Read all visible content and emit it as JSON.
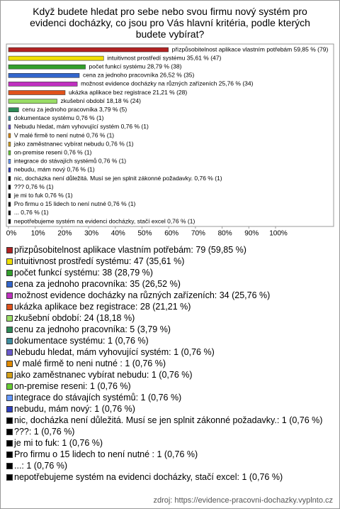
{
  "chart_data": {
    "type": "hbar",
    "title": "Když budete hledat pro sebe nebo svou firmu nový systém pro evidenci docházky, co jsou pro Vás hlavní kritéria, podle kterých budete vybírat?",
    "values": [
      59.85,
      35.61,
      28.79,
      26.52,
      25.76,
      21.21,
      18.18,
      3.79,
      0.76,
      0.76,
      0.76,
      0.76,
      0.76,
      0.76,
      0.76,
      0.76,
      0.76,
      0.76,
      0.76,
      0.76,
      0.76
    ],
    "value_labels": [
      "přizpůsobitelnost aplikace vlastním potřebám 59,85 % (79)",
      "intuitivnost prostředí systému 35,61 % (47)",
      "počet funkcí systému 28,79 % (38)",
      "cena za jednoho pracovníka 26,52 % (35)",
      "možnost evidence docházky na různých zařízeních 25,76 % (34)",
      "ukázka aplikace bez registrace 21,21 % (28)",
      "zkušební období 18,18 % (24)",
      "cenu za jednoho pracovníka 3,79 % (5)",
      "dokumentace systému 0,76 % (1)",
      "Nebudu hledat, mám vyhovující systém 0,76 % (1)",
      "V malé firmě to není nutné 0,76 % (1)",
      "jako zaměstnanec vybírat nebudu 0,76 % (1)",
      "on-premise reseni 0,76 % (1)",
      "integrace do stávajích systémů 0,76 % (1)",
      "nebudu, mám nový 0,76 % (1)",
      "nic, docházka není důležitá. Musí se jen splnit zákonné požadavky. 0,76 % (1)",
      "??? 0,76 % (1)",
      "je mi to fuk 0,76 % (1)",
      "Pro firmu o 15 lidech to není nutné  0,76 % (1)",
      "... 0,76 % (1)",
      "nepotřebujeme systém na evidenci docházky, stačí excel 0,76 % (1)"
    ],
    "legend_labels": [
      "přizpůsobitelnost aplikace vlastním potřebám: 79 (59,85 %)",
      "intuitivnost prostředí systému: 47 (35,61 %)",
      "počet funkcí systému: 38 (28,79 %)",
      "cena za jednoho pracovníka: 35 (26,52 %)",
      "možnost evidence docházky na různých zařízeních: 34 (25,76 %)",
      "ukázka aplikace bez registrace: 28 (21,21 %)",
      "zkušební období: 24 (18,18 %)",
      "cenu za jednoho pracovníka: 5 (3,79 %)",
      "dokumentace systému: 1 (0,76 %)",
      "Nebudu hledat, mám vyhovující systém: 1 (0,76 %)",
      "V malé firmě to neni nutné : 1 (0,76 %)",
      "jako zaměstnanec vybírat nebudu: 1 (0,76 %)",
      "on-premise reseni: 1 (0,76 %)",
      "integrace do stávajích systémů: 1 (0,76 %)",
      "nebudu, mám nový: 1 (0,76 %)",
      "nic, docházka není důležitá. Musí se jen splnit zákonné požadavky.: 1 (0,76 %)",
      "???: 1 (0,76 %)",
      "je mi to fuk: 1 (0,76 %)",
      "Pro firmu o 15 lidech to není nutné : 1 (0,76 %)",
      "...: 1 (0,76 %)",
      "nepotřebujeme systém na evidenci docházky, stačí excel: 1 (0,76 %)"
    ],
    "colors": [
      "#b22222",
      "#f0e000",
      "#33a02c",
      "#3366cc",
      "#c030c0",
      "#e0521b",
      "#99dd66",
      "#2e8b57",
      "#3f8fa0",
      "#6a5acd",
      "#e08a00",
      "#d4a017",
      "#66cc33",
      "#6699ff",
      "#2f3fbf",
      "#000000",
      "#000000",
      "#000000",
      "#000000",
      "#000000",
      "#000000"
    ],
    "xlim": [
      0,
      100
    ],
    "xticks": [
      {
        "value": 0,
        "label": "0%"
      },
      {
        "value": 10,
        "label": "10%"
      },
      {
        "value": 20,
        "label": "20%"
      },
      {
        "value": 30,
        "label": "30%"
      },
      {
        "value": 40,
        "label": "40%"
      },
      {
        "value": 50,
        "label": "50%"
      },
      {
        "value": 60,
        "label": "60%"
      },
      {
        "value": 70,
        "label": "70%"
      },
      {
        "value": 80,
        "label": "80%"
      },
      {
        "value": 90,
        "label": "90%"
      },
      {
        "value": 100,
        "label": "100%"
      }
    ],
    "source": "zdroj: https://evidence-pracovni-dochazky.vyplnto.cz"
  }
}
